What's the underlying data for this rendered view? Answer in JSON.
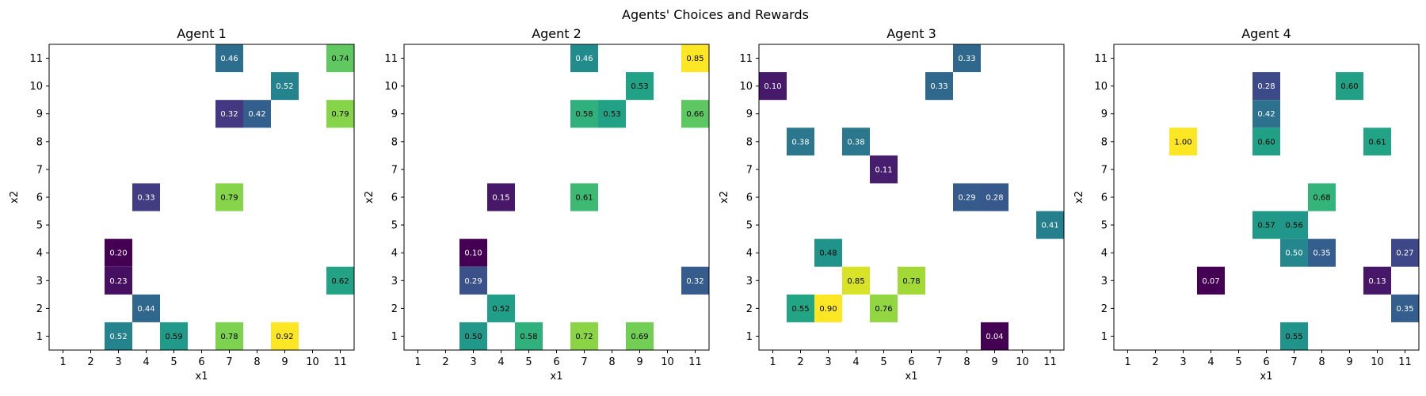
{
  "figure": {
    "title": "Agents' Choices and Rewards"
  },
  "chart_data": [
    {
      "type": "heatmap",
      "title": "Agent 1",
      "xlabel": "x1",
      "ylabel": "x2",
      "x_ticks": [
        1,
        2,
        3,
        4,
        5,
        6,
        7,
        8,
        9,
        10,
        11
      ],
      "y_ticks": [
        1,
        2,
        3,
        4,
        5,
        6,
        7,
        8,
        9,
        10,
        11
      ],
      "points": [
        {
          "x": 7,
          "y": 11,
          "value": 0.46
        },
        {
          "x": 11,
          "y": 11,
          "value": 0.74
        },
        {
          "x": 9,
          "y": 10,
          "value": 0.52
        },
        {
          "x": 7,
          "y": 9,
          "value": 0.32
        },
        {
          "x": 8,
          "y": 9,
          "value": 0.42
        },
        {
          "x": 11,
          "y": 9,
          "value": 0.79
        },
        {
          "x": 4,
          "y": 6,
          "value": 0.33
        },
        {
          "x": 7,
          "y": 6,
          "value": 0.79
        },
        {
          "x": 3,
          "y": 4,
          "value": 0.2
        },
        {
          "x": 3,
          "y": 3,
          "value": 0.23
        },
        {
          "x": 11,
          "y": 3,
          "value": 0.62
        },
        {
          "x": 4,
          "y": 2,
          "value": 0.44
        },
        {
          "x": 3,
          "y": 1,
          "value": 0.52
        },
        {
          "x": 5,
          "y": 1,
          "value": 0.59
        },
        {
          "x": 7,
          "y": 1,
          "value": 0.78
        },
        {
          "x": 9,
          "y": 1,
          "value": 0.92
        }
      ]
    },
    {
      "type": "heatmap",
      "title": "Agent 2",
      "xlabel": "x1",
      "ylabel": "x2",
      "x_ticks": [
        1,
        2,
        3,
        4,
        5,
        6,
        7,
        8,
        9,
        10,
        11
      ],
      "y_ticks": [
        1,
        2,
        3,
        4,
        5,
        6,
        7,
        8,
        9,
        10,
        11
      ],
      "points": [
        {
          "x": 7,
          "y": 11,
          "value": 0.46
        },
        {
          "x": 11,
          "y": 11,
          "value": 0.85
        },
        {
          "x": 9,
          "y": 10,
          "value": 0.53
        },
        {
          "x": 7,
          "y": 9,
          "value": 0.58
        },
        {
          "x": 8,
          "y": 9,
          "value": 0.53
        },
        {
          "x": 11,
          "y": 9,
          "value": 0.66
        },
        {
          "x": 4,
          "y": 6,
          "value": 0.15
        },
        {
          "x": 7,
          "y": 6,
          "value": 0.61
        },
        {
          "x": 3,
          "y": 4,
          "value": 0.1
        },
        {
          "x": 3,
          "y": 3,
          "value": 0.29
        },
        {
          "x": 11,
          "y": 3,
          "value": 0.32
        },
        {
          "x": 4,
          "y": 2,
          "value": 0.52
        },
        {
          "x": 3,
          "y": 1,
          "value": 0.5
        },
        {
          "x": 5,
          "y": 1,
          "value": 0.58
        },
        {
          "x": 7,
          "y": 1,
          "value": 0.72
        },
        {
          "x": 9,
          "y": 1,
          "value": 0.69
        }
      ]
    },
    {
      "type": "heatmap",
      "title": "Agent 3",
      "xlabel": "x1",
      "ylabel": "x2",
      "x_ticks": [
        1,
        2,
        3,
        4,
        5,
        6,
        7,
        8,
        9,
        10,
        11
      ],
      "y_ticks": [
        1,
        2,
        3,
        4,
        5,
        6,
        7,
        8,
        9,
        10,
        11
      ],
      "points": [
        {
          "x": 8,
          "y": 11,
          "value": 0.33
        },
        {
          "x": 1,
          "y": 10,
          "value": 0.1
        },
        {
          "x": 7,
          "y": 10,
          "value": 0.33
        },
        {
          "x": 2,
          "y": 8,
          "value": 0.38
        },
        {
          "x": 4,
          "y": 8,
          "value": 0.38
        },
        {
          "x": 5,
          "y": 7,
          "value": 0.11
        },
        {
          "x": 8,
          "y": 6,
          "value": 0.29
        },
        {
          "x": 9,
          "y": 6,
          "value": 0.28
        },
        {
          "x": 11,
          "y": 5,
          "value": 0.41
        },
        {
          "x": 3,
          "y": 4,
          "value": 0.48
        },
        {
          "x": 4,
          "y": 3,
          "value": 0.85
        },
        {
          "x": 6,
          "y": 3,
          "value": 0.78
        },
        {
          "x": 2,
          "y": 2,
          "value": 0.55
        },
        {
          "x": 3,
          "y": 2,
          "value": 0.9
        },
        {
          "x": 5,
          "y": 2,
          "value": 0.76
        },
        {
          "x": 9,
          "y": 1,
          "value": 0.04
        }
      ]
    },
    {
      "type": "heatmap",
      "title": "Agent 4",
      "xlabel": "x1",
      "ylabel": "x2",
      "x_ticks": [
        1,
        2,
        3,
        4,
        5,
        6,
        7,
        8,
        9,
        10,
        11
      ],
      "y_ticks": [
        1,
        2,
        3,
        4,
        5,
        6,
        7,
        8,
        9,
        10,
        11
      ],
      "points": [
        {
          "x": 6,
          "y": 10,
          "value": 0.28
        },
        {
          "x": 9,
          "y": 10,
          "value": 0.6
        },
        {
          "x": 6,
          "y": 9,
          "value": 0.42
        },
        {
          "x": 3,
          "y": 8,
          "value": 1.0
        },
        {
          "x": 6,
          "y": 8,
          "value": 0.6
        },
        {
          "x": 10,
          "y": 8,
          "value": 0.61
        },
        {
          "x": 8,
          "y": 6,
          "value": 0.68
        },
        {
          "x": 6,
          "y": 5,
          "value": 0.57
        },
        {
          "x": 7,
          "y": 5,
          "value": 0.56
        },
        {
          "x": 7,
          "y": 4,
          "value": 0.5
        },
        {
          "x": 8,
          "y": 4,
          "value": 0.35
        },
        {
          "x": 11,
          "y": 4,
          "value": 0.27
        },
        {
          "x": 4,
          "y": 3,
          "value": 0.07
        },
        {
          "x": 10,
          "y": 3,
          "value": 0.13
        },
        {
          "x": 11,
          "y": 2,
          "value": 0.35
        },
        {
          "x": 7,
          "y": 1,
          "value": 0.55
        }
      ]
    }
  ]
}
